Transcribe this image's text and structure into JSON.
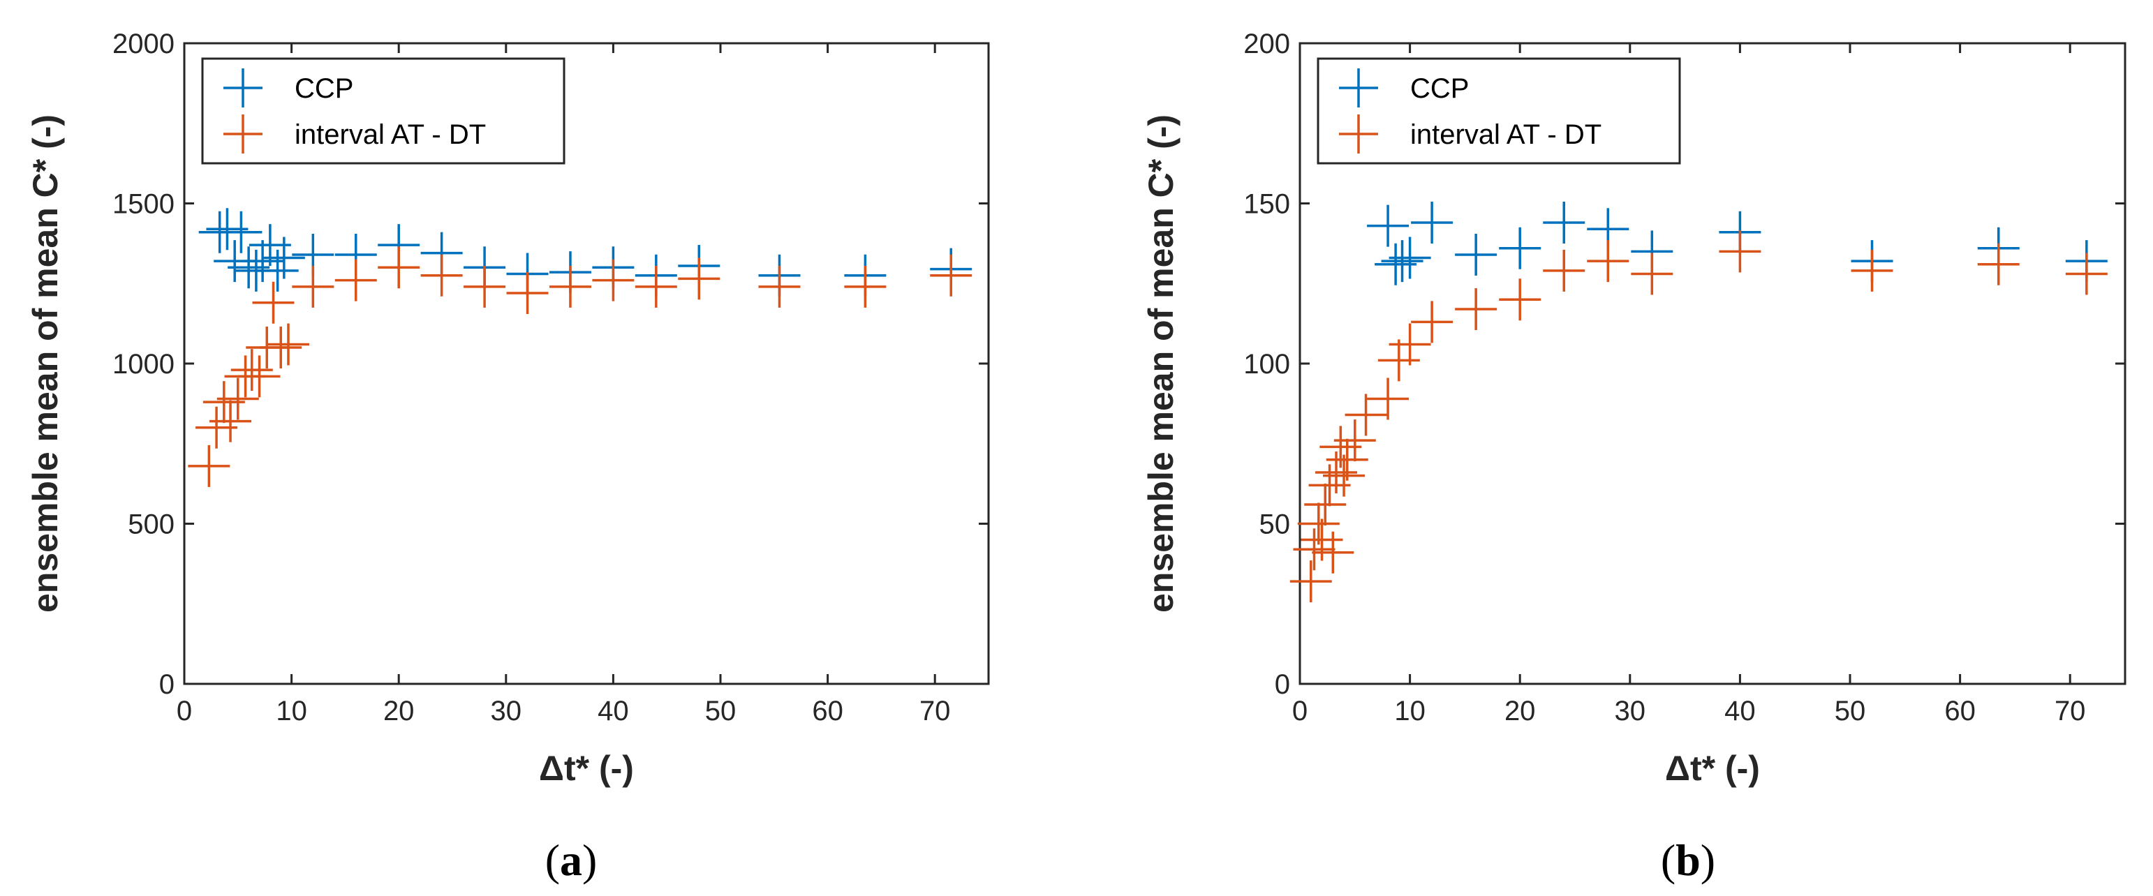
{
  "chart_data": [
    {
      "type": "scatter",
      "panel_label": [
        "(",
        "a",
        ")"
      ],
      "xlabel": "Δt* (-)",
      "ylabel": "ensemble mean of mean C* (-)",
      "xlim": [
        0,
        75
      ],
      "ylim": [
        0,
        2000
      ],
      "xticks": [
        0,
        10,
        20,
        30,
        40,
        50,
        60,
        70
      ],
      "yticks": [
        0,
        500,
        1000,
        1500,
        2000
      ],
      "marker": "+",
      "legend_position": "top-left",
      "series": [
        {
          "name": "CCP",
          "color": "#0072BD",
          "x": [
            3.3,
            4.0,
            4.7,
            5.3,
            6.0,
            6.7,
            7.3,
            8.0,
            8.7,
            9.3,
            12,
            16,
            20,
            24,
            28,
            32,
            36,
            40,
            44,
            48,
            55.5,
            63.5,
            71.5
          ],
          "y": [
            1410,
            1420,
            1320,
            1410,
            1300,
            1290,
            1320,
            1370,
            1290,
            1330,
            1340,
            1340,
            1370,
            1345,
            1300,
            1280,
            1285,
            1300,
            1275,
            1305,
            1275,
            1275,
            1295
          ]
        },
        {
          "name": "interval AT - DT",
          "color": "#D95319",
          "x": [
            2.3,
            3.0,
            3.7,
            4.3,
            5.0,
            5.7,
            6.3,
            7.0,
            7.7,
            8.3,
            9.0,
            9.7,
            12,
            16,
            20,
            24,
            28,
            32,
            36,
            40,
            44,
            48,
            55.5,
            63.5,
            71.5
          ],
          "y": [
            680,
            800,
            880,
            820,
            890,
            960,
            980,
            960,
            1050,
            1190,
            1050,
            1060,
            1240,
            1260,
            1300,
            1275,
            1240,
            1220,
            1240,
            1260,
            1240,
            1265,
            1240,
            1240,
            1275
          ]
        }
      ]
    },
    {
      "type": "scatter",
      "panel_label": [
        "(",
        "b",
        ")"
      ],
      "xlabel": "Δt* (-)",
      "ylabel": "ensemble mean of mean C* (-)",
      "xlim": [
        0,
        75
      ],
      "ylim": [
        0,
        200
      ],
      "xticks": [
        0,
        10,
        20,
        30,
        40,
        50,
        60,
        70
      ],
      "yticks": [
        0,
        50,
        100,
        150,
        200
      ],
      "marker": "+",
      "legend_position": "top-left",
      "series": [
        {
          "name": "CCP",
          "color": "#0072BD",
          "x": [
            8.0,
            8.7,
            9.3,
            10.0,
            12,
            16,
            20,
            24,
            28,
            32,
            40,
            52,
            63.5,
            71.5
          ],
          "y": [
            143,
            131,
            132,
            133,
            144,
            134,
            136,
            144,
            142,
            135,
            141,
            132,
            136,
            132
          ]
        },
        {
          "name": "interval AT - DT",
          "color": "#D95319",
          "x": [
            1.0,
            1.3,
            1.7,
            2.0,
            2.3,
            2.7,
            3.0,
            3.3,
            3.7,
            4.0,
            4.3,
            5.0,
            6.0,
            8.0,
            9.0,
            10.0,
            12,
            16,
            20,
            24,
            28,
            32,
            40,
            52,
            63.5,
            71.5
          ],
          "y": [
            32,
            42,
            50,
            45,
            56,
            62,
            41,
            66,
            74,
            65,
            70,
            76,
            84,
            89,
            101,
            106,
            113,
            117,
            120,
            129,
            132,
            128,
            135,
            129,
            131,
            128
          ]
        }
      ]
    }
  ]
}
